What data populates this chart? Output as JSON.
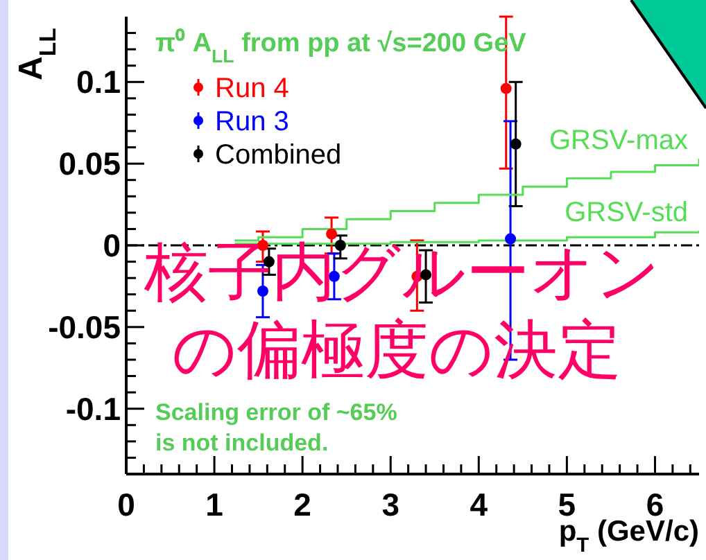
{
  "chart_data": {
    "type": "scatter",
    "title": "π⁰ A$_{LL}$ from pp at √s=200 GeV",
    "xlabel": "p$_{T}$ (GeV/c)",
    "ylabel": "A$_{LL}$",
    "annotations": [
      "Scaling error of ~65%",
      "is not included.",
      "核子内グルーオン",
      "の偏極度の決定"
    ],
    "xlim": [
      0,
      6.5
    ],
    "ylim": [
      -0.14,
      0.14
    ],
    "xticks": [
      0,
      {
        "value": 0.2,
        "label": null
      },
      {
        "value": 0.4,
        "label": null
      },
      {
        "value": 0.6,
        "label": null
      },
      {
        "value": 0.8,
        "label": null
      },
      1,
      {
        "value": 1.2,
        "label": null
      },
      {
        "value": 1.4,
        "label": null
      },
      {
        "value": 1.6,
        "label": null
      },
      {
        "value": 1.8,
        "label": null
      },
      2,
      {
        "value": 2.2,
        "label": null
      },
      {
        "value": 2.4,
        "label": null
      },
      {
        "value": 2.6,
        "label": null
      },
      {
        "value": 2.8,
        "label": null
      },
      3,
      {
        "value": 3.2,
        "label": null
      },
      {
        "value": 3.4,
        "label": null
      },
      {
        "value": 3.6,
        "label": null
      },
      {
        "value": 3.8,
        "label": null
      },
      4,
      {
        "value": 4.2,
        "label": null
      },
      {
        "value": 4.4,
        "label": null
      },
      {
        "value": 4.6,
        "label": null
      },
      {
        "value": 4.8,
        "label": null
      },
      5,
      {
        "value": 5.2,
        "label": null
      },
      {
        "value": 5.4,
        "label": null
      },
      {
        "value": 5.6,
        "label": null
      },
      {
        "value": 5.8,
        "label": null
      },
      6,
      {
        "value": 6.2,
        "label": null
      },
      {
        "value": 6.4,
        "label": null
      }
    ],
    "yticks": [
      {
        "value": -0.13,
        "label": null
      },
      {
        "value": -0.12,
        "label": null
      },
      {
        "value": -0.11,
        "label": null
      },
      -0.1,
      {
        "value": -0.09,
        "label": null
      },
      {
        "value": -0.08,
        "label": null
      },
      {
        "value": -0.07,
        "label": null
      },
      {
        "value": -0.06,
        "label": null
      },
      -0.05,
      {
        "value": -0.04,
        "label": null
      },
      {
        "value": -0.03,
        "label": null
      },
      {
        "value": -0.02,
        "label": null
      },
      {
        "value": -0.01,
        "label": null
      },
      0,
      {
        "value": 0.01,
        "label": null
      },
      {
        "value": 0.02,
        "label": null
      },
      {
        "value": 0.03,
        "label": null
      },
      {
        "value": 0.04,
        "label": null
      },
      0.05,
      {
        "value": 0.06,
        "label": null
      },
      {
        "value": 0.07,
        "label": null
      },
      {
        "value": 0.08,
        "label": null
      },
      {
        "value": 0.09,
        "label": null
      },
      0.1,
      {
        "value": 0.11,
        "label": null
      },
      {
        "value": 0.12,
        "label": null
      },
      {
        "value": 0.13,
        "label": null
      }
    ],
    "marker": "circle",
    "legend": "top left",
    "ref_lines": [
      {
        "axis": "y",
        "value": 0,
        "color": "#000000",
        "line_style": "dashed"
      }
    ],
    "series": [
      {
        "name": "Run 4",
        "color": "#ff0000",
        "x": [
          1.55,
          2.33,
          3.3,
          4.31
        ],
        "values": [
          0,
          0.007,
          -0.019,
          0.096
        ],
        "errors": [
          [
            -0.01,
            0.0085
          ],
          [
            -0.005,
            0.017
          ],
          [
            -0.04,
            0.003
          ],
          [
            0.047,
            0.14
          ]
        ]
      },
      {
        "name": "Run 3",
        "color": "#0000ff",
        "x": [
          1.55,
          2.36,
          3.33,
          4.36
        ],
        "values": [
          -0.028,
          -0.019,
          null,
          0.004
        ],
        "errors": [
          [
            -0.044,
            -0.012
          ],
          [
            -0.033,
            -0.005
          ],
          null,
          [
            -0.07,
            0.076
          ]
        ]
      },
      {
        "name": "Combined",
        "color": "#000000",
        "x": [
          1.62,
          2.43,
          3.4,
          4.42
        ],
        "values": [
          -0.01,
          0,
          -0.018,
          0.062
        ],
        "errors": [
          [
            -0.018,
            -0.002
          ],
          [
            -0.008,
            0.006
          ],
          [
            -0.035,
            -0.003
          ],
          [
            0.024,
            0.1
          ]
        ]
      },
      {
        "name": "GRSV-max",
        "type": "step",
        "color": "#55dd55",
        "marker": "none",
        "x": [
          1.23,
          1.5,
          2,
          2.5,
          3,
          3.5,
          4,
          4.5,
          5,
          5.5,
          6,
          6.5
        ],
        "values": [
          0.003,
          0.005,
          0.01,
          0.016,
          0.021,
          0.026,
          0.031,
          0.036,
          0.041,
          0.045,
          0.049,
          0.053
        ]
      },
      {
        "name": "GRSV-std",
        "type": "step",
        "color": "#55dd55",
        "marker": "none",
        "x": [
          1.23,
          2,
          3,
          4,
          5,
          6,
          6.5
        ],
        "values": [
          0.001,
          0.001,
          0.002,
          0.003,
          0.005,
          0.008,
          0.009
        ]
      }
    ]
  }
}
